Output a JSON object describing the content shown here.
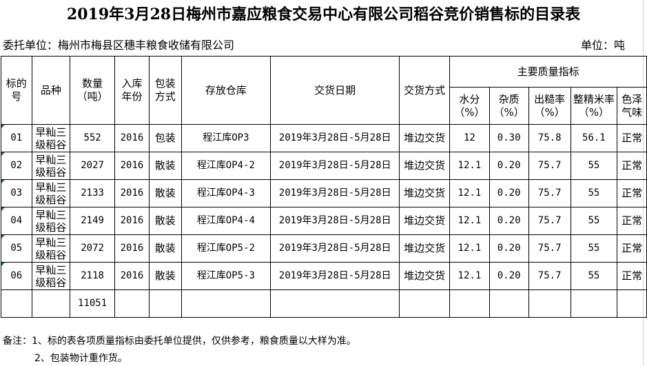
{
  "title": "2019年3月28日梅州市嘉应粮食交易中心有限公司稻谷竞价销售标的目录表",
  "consignor": "委托单位：梅州市梅县区穗丰粮食收储有限公司",
  "unit": "单位：吨",
  "headers": {
    "lot": "标的号",
    "variety": "品种",
    "qty": "数量（吨）",
    "year": "入库年份",
    "pack": "包装方式",
    "store": "存放仓库",
    "date": "交货日期",
    "method": "交货方式",
    "quality": "主要质量指标",
    "moisture": "水分（%）",
    "impurity": "杂质（%）",
    "rough": "出糙率（%）",
    "whole": "整精米率（%）",
    "color": "色泽气味"
  },
  "rows": [
    {
      "lot": "01",
      "variety": "早籼三级稻谷",
      "qty": "552",
      "year": "2016",
      "pack": "包装",
      "store": "程江库OP3",
      "date": "2019年3月28日-5月28日",
      "method": "堆边交货",
      "moisture": "12",
      "impurity": "0.30",
      "rough": "75.8",
      "whole": "56.1",
      "color": "正常"
    },
    {
      "lot": "02",
      "variety": "早籼三级稻谷",
      "qty": "2027",
      "year": "2016",
      "pack": "散装",
      "store": "程江库OP4-2",
      "date": "2019年3月28日-5月28日",
      "method": "堆边交货",
      "moisture": "12.1",
      "impurity": "0.20",
      "rough": "75.7",
      "whole": "55",
      "color": "正常"
    },
    {
      "lot": "03",
      "variety": "早籼三级稻谷",
      "qty": "2133",
      "year": "2016",
      "pack": "散装",
      "store": "程江库OP4-3",
      "date": "2019年3月28日-5月28日",
      "method": "堆边交货",
      "moisture": "12.1",
      "impurity": "0.20",
      "rough": "75.7",
      "whole": "55",
      "color": "正常"
    },
    {
      "lot": "04",
      "variety": "早籼三级稻谷",
      "qty": "2149",
      "year": "2016",
      "pack": "散装",
      "store": "程江库OP4-4",
      "date": "2019年3月28日-5月28日",
      "method": "堆边交货",
      "moisture": "12.1",
      "impurity": "0.20",
      "rough": "75.7",
      "whole": "55",
      "color": "正常"
    },
    {
      "lot": "05",
      "variety": "早籼三级稻谷",
      "qty": "2072",
      "year": "2016",
      "pack": "散装",
      "store": "程江库OP5-2",
      "date": "2019年3月28日-5月28日",
      "method": "堆边交货",
      "moisture": "12.1",
      "impurity": "0.20",
      "rough": "75.7",
      "whole": "55",
      "color": "正常"
    },
    {
      "lot": "06",
      "variety": "早籼三级稻谷",
      "qty": "2118",
      "year": "2016",
      "pack": "散装",
      "store": "程江库OP5-3",
      "date": "2019年3月28日-5月28日",
      "method": "堆边交货",
      "moisture": "12.1",
      "impurity": "0.20",
      "rough": "75.7",
      "whole": "55",
      "color": "正常"
    }
  ],
  "total": "11051",
  "notes": [
    "备注：1、标的表各项质量指标由委托单位提供，仅供参考，粮食质量以大样为准。",
    "2、包装物计重作货。"
  ]
}
